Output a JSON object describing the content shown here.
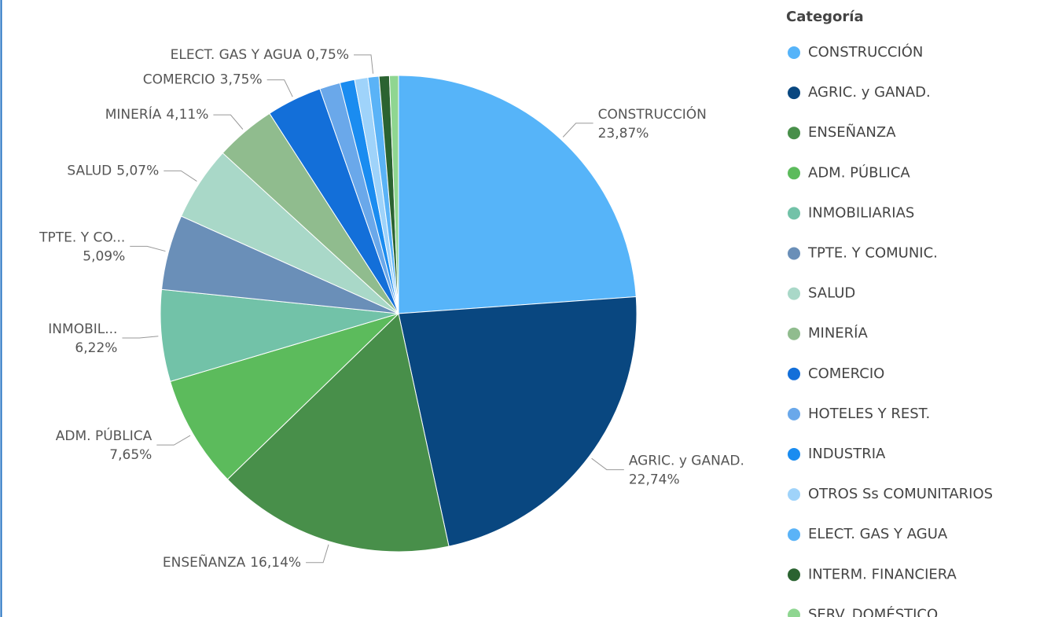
{
  "chart_data": {
    "type": "pie",
    "legend_title": "Categoría",
    "legend": "right",
    "categories": [
      "CONSTRUCCIÓN",
      "AGRIC. y GANAD.",
      "ENSEÑANZA",
      "ADM. PÚBLICA",
      "INMOBILIARIAS",
      "TPTE. Y COMUNIC.",
      "SALUD",
      "MINERÍA",
      "COMERCIO",
      "HOTELES Y REST.",
      "INDUSTRIA",
      "OTROS Ss COMUNITARIOS",
      "ELECT. GAS Y AGUA",
      "INTERM. FINANCIERA",
      "SERV. DOMÉSTICO"
    ],
    "values": [
      23.87,
      22.74,
      16.14,
      7.65,
      6.22,
      5.09,
      5.07,
      4.11,
      3.75,
      1.4,
      1.0,
      0.9,
      0.75,
      0.7,
      0.61
    ],
    "label_names": [
      "CONSTRUCCIÓN",
      "AGRIC. y GANAD.",
      "ENSEÑANZA",
      "ADM. PÚBLICA",
      "INMOBIL...",
      "TPTE. Y CO...",
      "SALUD",
      "MINERÍA",
      "COMERCIO",
      null,
      null,
      null,
      "ELECT. GAS Y AGUA",
      null,
      null
    ],
    "value_labels": [
      "23,87%",
      "22,74%",
      "16,14%",
      "7,65%",
      "6,22%",
      "5,09%",
      "5,07%",
      "4,11%",
      "3,75%",
      null,
      null,
      null,
      "0,75%",
      null,
      null
    ],
    "colors": [
      "#56b4f9",
      "#094780",
      "#488f4a",
      "#5cbb5c",
      "#72c2a8",
      "#6a8fb8",
      "#a9d8c8",
      "#90bc8e",
      "#136fd9",
      "#6aa8ea",
      "#1a8cf0",
      "#9fd3fa",
      "#5ab3f7",
      "#2b6331",
      "#8fd691"
    ]
  }
}
